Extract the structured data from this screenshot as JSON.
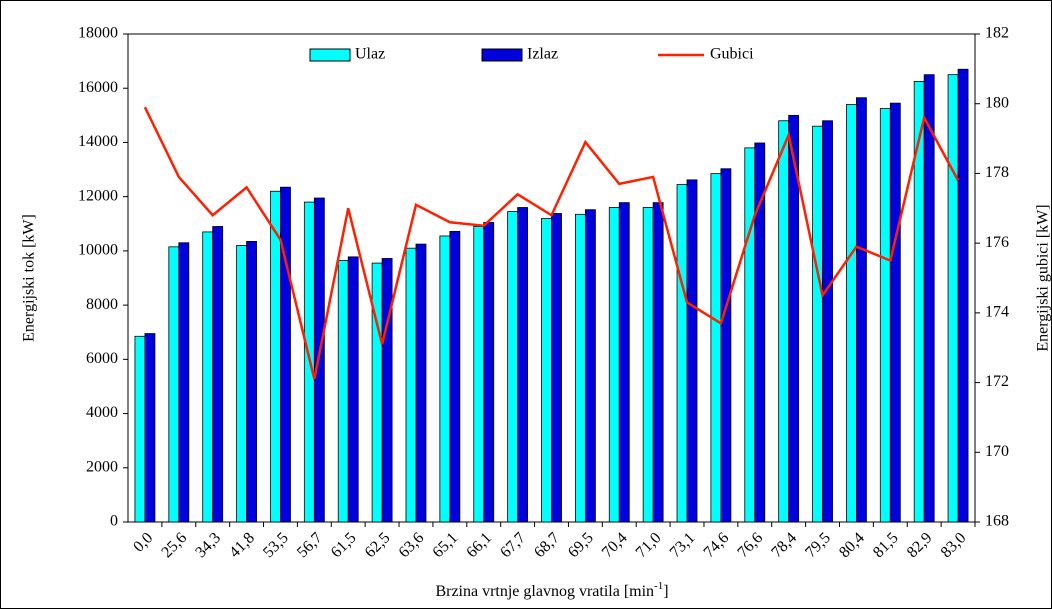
{
  "chart_data": {
    "type": "bar_line",
    "x_label": {
      "text": "Brzina vrtnje glavnog vratila [min",
      "sup": "-1",
      "end": "]"
    },
    "y_label": "Energijski tok [kW]",
    "y2_label": "Energijski gubici [kW]",
    "categories": [
      "0,0",
      "25,6",
      "34,3",
      "41,8",
      "53,5",
      "56,7",
      "61,5",
      "62,5",
      "63,6",
      "65,1",
      "66,1",
      "67,7",
      "68,7",
      "69,5",
      "70,4",
      "71,0",
      "73,1",
      "74,6",
      "76,6",
      "78,4",
      "79,5",
      "80,4",
      "81,5",
      "82,9",
      "83,0"
    ],
    "series": [
      {
        "name": "Ulaz",
        "type": "bar",
        "color": "#00ffff",
        "values": [
          6850,
          10150,
          10700,
          10200,
          12200,
          11800,
          9650,
          9550,
          10100,
          10550,
          10900,
          11450,
          11200,
          11350,
          11600,
          11600,
          12450,
          12850,
          13800,
          14800,
          14600,
          15400,
          15250,
          16250,
          16500
        ]
      },
      {
        "name": "Izlaz",
        "type": "bar",
        "color": "#0000dd",
        "values": [
          6950,
          10300,
          10900,
          10350,
          12350,
          11950,
          9780,
          9720,
          10250,
          10720,
          11050,
          11600,
          11380,
          11520,
          11780,
          11780,
          12620,
          13030,
          13980,
          15000,
          14800,
          15650,
          15450,
          16500,
          16700
        ]
      },
      {
        "name": "Gubici",
        "type": "line",
        "axis": "y2",
        "color": "#ff2000",
        "values": [
          179.9,
          177.9,
          176.8,
          177.6,
          176.1,
          172.1,
          177.0,
          173.1,
          177.1,
          176.6,
          176.5,
          177.4,
          176.8,
          178.9,
          177.7,
          177.9,
          174.3,
          173.7,
          176.8,
          179.1,
          174.5,
          175.9,
          175.5,
          179.6,
          177.8
        ]
      }
    ],
    "ylim": [
      0,
      18000
    ],
    "yticks": [
      0,
      2000,
      4000,
      6000,
      8000,
      10000,
      12000,
      14000,
      16000,
      18000
    ],
    "y2lim": [
      168,
      182
    ],
    "y2ticks": [
      168,
      170,
      172,
      174,
      176,
      178,
      180,
      182
    ],
    "legend": "top"
  }
}
